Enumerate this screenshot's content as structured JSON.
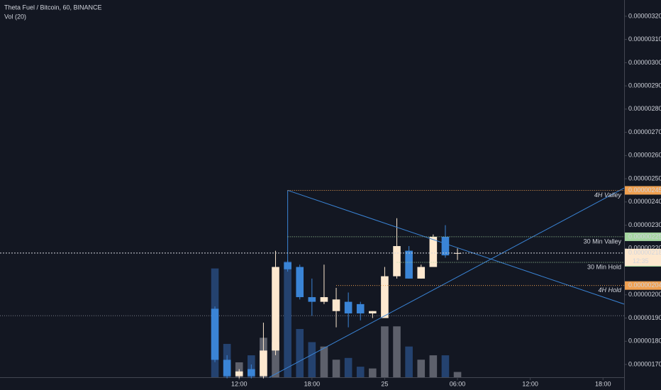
{
  "chart_data": {
    "type": "candlestick",
    "title": "Theta Fuel / Bitcoin, 60, BINANCE",
    "subtitle": "Vol (20)",
    "x": [
      0,
      1,
      2,
      3,
      4,
      5,
      6,
      7,
      8,
      9,
      10,
      11,
      12,
      13,
      14,
      15,
      16,
      17,
      18,
      19,
      20
    ],
    "open": [
      1.94e-06,
      1.72e-06,
      1.65e-06,
      1.68e-06,
      1.65e-06,
      1.76e-06,
      2.14e-06,
      2.12e-06,
      1.99e-06,
      1.97e-06,
      1.93e-06,
      1.97e-06,
      1.96e-06,
      1.92e-06,
      1.9e-06,
      2.08e-06,
      2.19e-06,
      2.07e-06,
      2.12e-06,
      2.25e-06,
      2.18e-06
    ],
    "high": [
      1.95e-06,
      1.74e-06,
      1.68e-06,
      1.7e-06,
      1.88e-06,
      2.19e-06,
      2.15e-06,
      2.13e-06,
      2.07e-06,
      2.13e-06,
      2.03e-06,
      2.01e-06,
      1.97e-06,
      1.93e-06,
      2.12e-06,
      2.33e-06,
      2.21e-06,
      2.13e-06,
      2.26e-06,
      2.3e-06,
      2.2e-06
    ],
    "low": [
      1.71e-06,
      1.64e-06,
      1.64e-06,
      1.64e-06,
      1.64e-06,
      1.74e-06,
      2.1e-06,
      1.98e-06,
      1.91e-06,
      1.96e-06,
      1.86e-06,
      1.86e-06,
      1.89e-06,
      1.9e-06,
      1.9e-06,
      2.07e-06,
      2.07e-06,
      2.07e-06,
      2.12e-06,
      2.16e-06,
      2.15e-06
    ],
    "close": [
      1.72e-06,
      1.65e-06,
      1.67e-06,
      1.65e-06,
      1.76e-06,
      2.12e-06,
      2.11e-06,
      1.99e-06,
      1.97e-06,
      1.99e-06,
      1.98e-06,
      1.92e-06,
      1.92e-06,
      1.93e-06,
      2.08e-06,
      2.21e-06,
      2.07e-06,
      2.12e-06,
      2.25e-06,
      2.17e-06,
      2.18e-06
    ],
    "volume": [
      124,
      38,
      17,
      25,
      45,
      40,
      132,
      55,
      40,
      35,
      20,
      22,
      12,
      10,
      58,
      58,
      35,
      20,
      25,
      25,
      6
    ],
    "up_color": "#fde8cf",
    "down_color": "#3a84d6",
    "volume_up_color": "#5d606b",
    "volume_down_color": "#24426f",
    "xlim": [
      -17.72,
      33.74
    ],
    "ylim": [
      1.645e-06,
      3.27e-06
    ],
    "vlim": [
      0,
      430
    ],
    "xticks": [
      {
        "value": 2,
        "label": "12:00"
      },
      {
        "value": 8,
        "label": "18:00"
      },
      {
        "value": 14,
        "label": "25"
      },
      {
        "value": 20,
        "label": "06:00"
      },
      {
        "value": 26,
        "label": "12:00"
      },
      {
        "value": 32,
        "label": "18:00"
      }
    ],
    "yticks": [
      {
        "value": 3.2e-06,
        "label": "0.00000320"
      },
      {
        "value": 3.1e-06,
        "label": "0.00000310"
      },
      {
        "value": 3e-06,
        "label": "0.00000300"
      },
      {
        "value": 2.9e-06,
        "label": "0.00000290"
      },
      {
        "value": 2.8e-06,
        "label": "0.00000280"
      },
      {
        "value": 2.7e-06,
        "label": "0.00000270"
      },
      {
        "value": 2.6e-06,
        "label": "0.00000260"
      },
      {
        "value": 2.5e-06,
        "label": "0.00000250"
      },
      {
        "value": 2.4e-06,
        "label": "0.00000240"
      },
      {
        "value": 2.3e-06,
        "label": "0.00000230"
      },
      {
        "value": 2.2e-06,
        "label": "0.00000220"
      },
      {
        "value": 2e-06,
        "label": "0.00000200"
      },
      {
        "value": 1.9e-06,
        "label": "0.00000190"
      },
      {
        "value": 1.8e-06,
        "label": "0.00000180"
      },
      {
        "value": 1.7e-06,
        "label": "0.00000170"
      }
    ],
    "levels": [
      {
        "text": "4H Valley",
        "value": 2.45e-06,
        "axis_label": "0.00000245",
        "color": "#f0a050",
        "start": 6,
        "italic": true
      },
      {
        "text": "30 Min Valley",
        "value": 2.25e-06,
        "axis_label": "0.00000225",
        "color": "#a5d6a0",
        "start": 6,
        "italic": false
      },
      {
        "text": "30 Min Hold",
        "value": 2.14e-06,
        "axis_label": "0.00000214",
        "color": "#a5d6a0",
        "start": 15,
        "italic": false
      },
      {
        "text": "4H Hold",
        "value": 2.04e-06,
        "axis_label": "0.00000204",
        "color": "#f0a050",
        "start": 10,
        "italic": true
      }
    ],
    "guide_lines": [
      {
        "value": 1.91e-06,
        "color": "#787b86"
      }
    ],
    "trend_lines": [
      {
        "x": [
          6,
          33.74
        ],
        "y": [
          2.45e-06,
          1.96e-06
        ],
        "color": "#3a84d6"
      },
      {
        "x": [
          4.5,
          33.74
        ],
        "y": [
          1.645e-06,
          2.46e-06
        ],
        "color": "#3a84d6"
      },
      {
        "x": [
          6,
          6
        ],
        "y": [
          2.45e-06,
          2.14e-06
        ],
        "color": "#3a84d6"
      }
    ],
    "last_price": {
      "value": 2.18e-06,
      "label": "0.00000218",
      "countdown": "12:35"
    }
  }
}
